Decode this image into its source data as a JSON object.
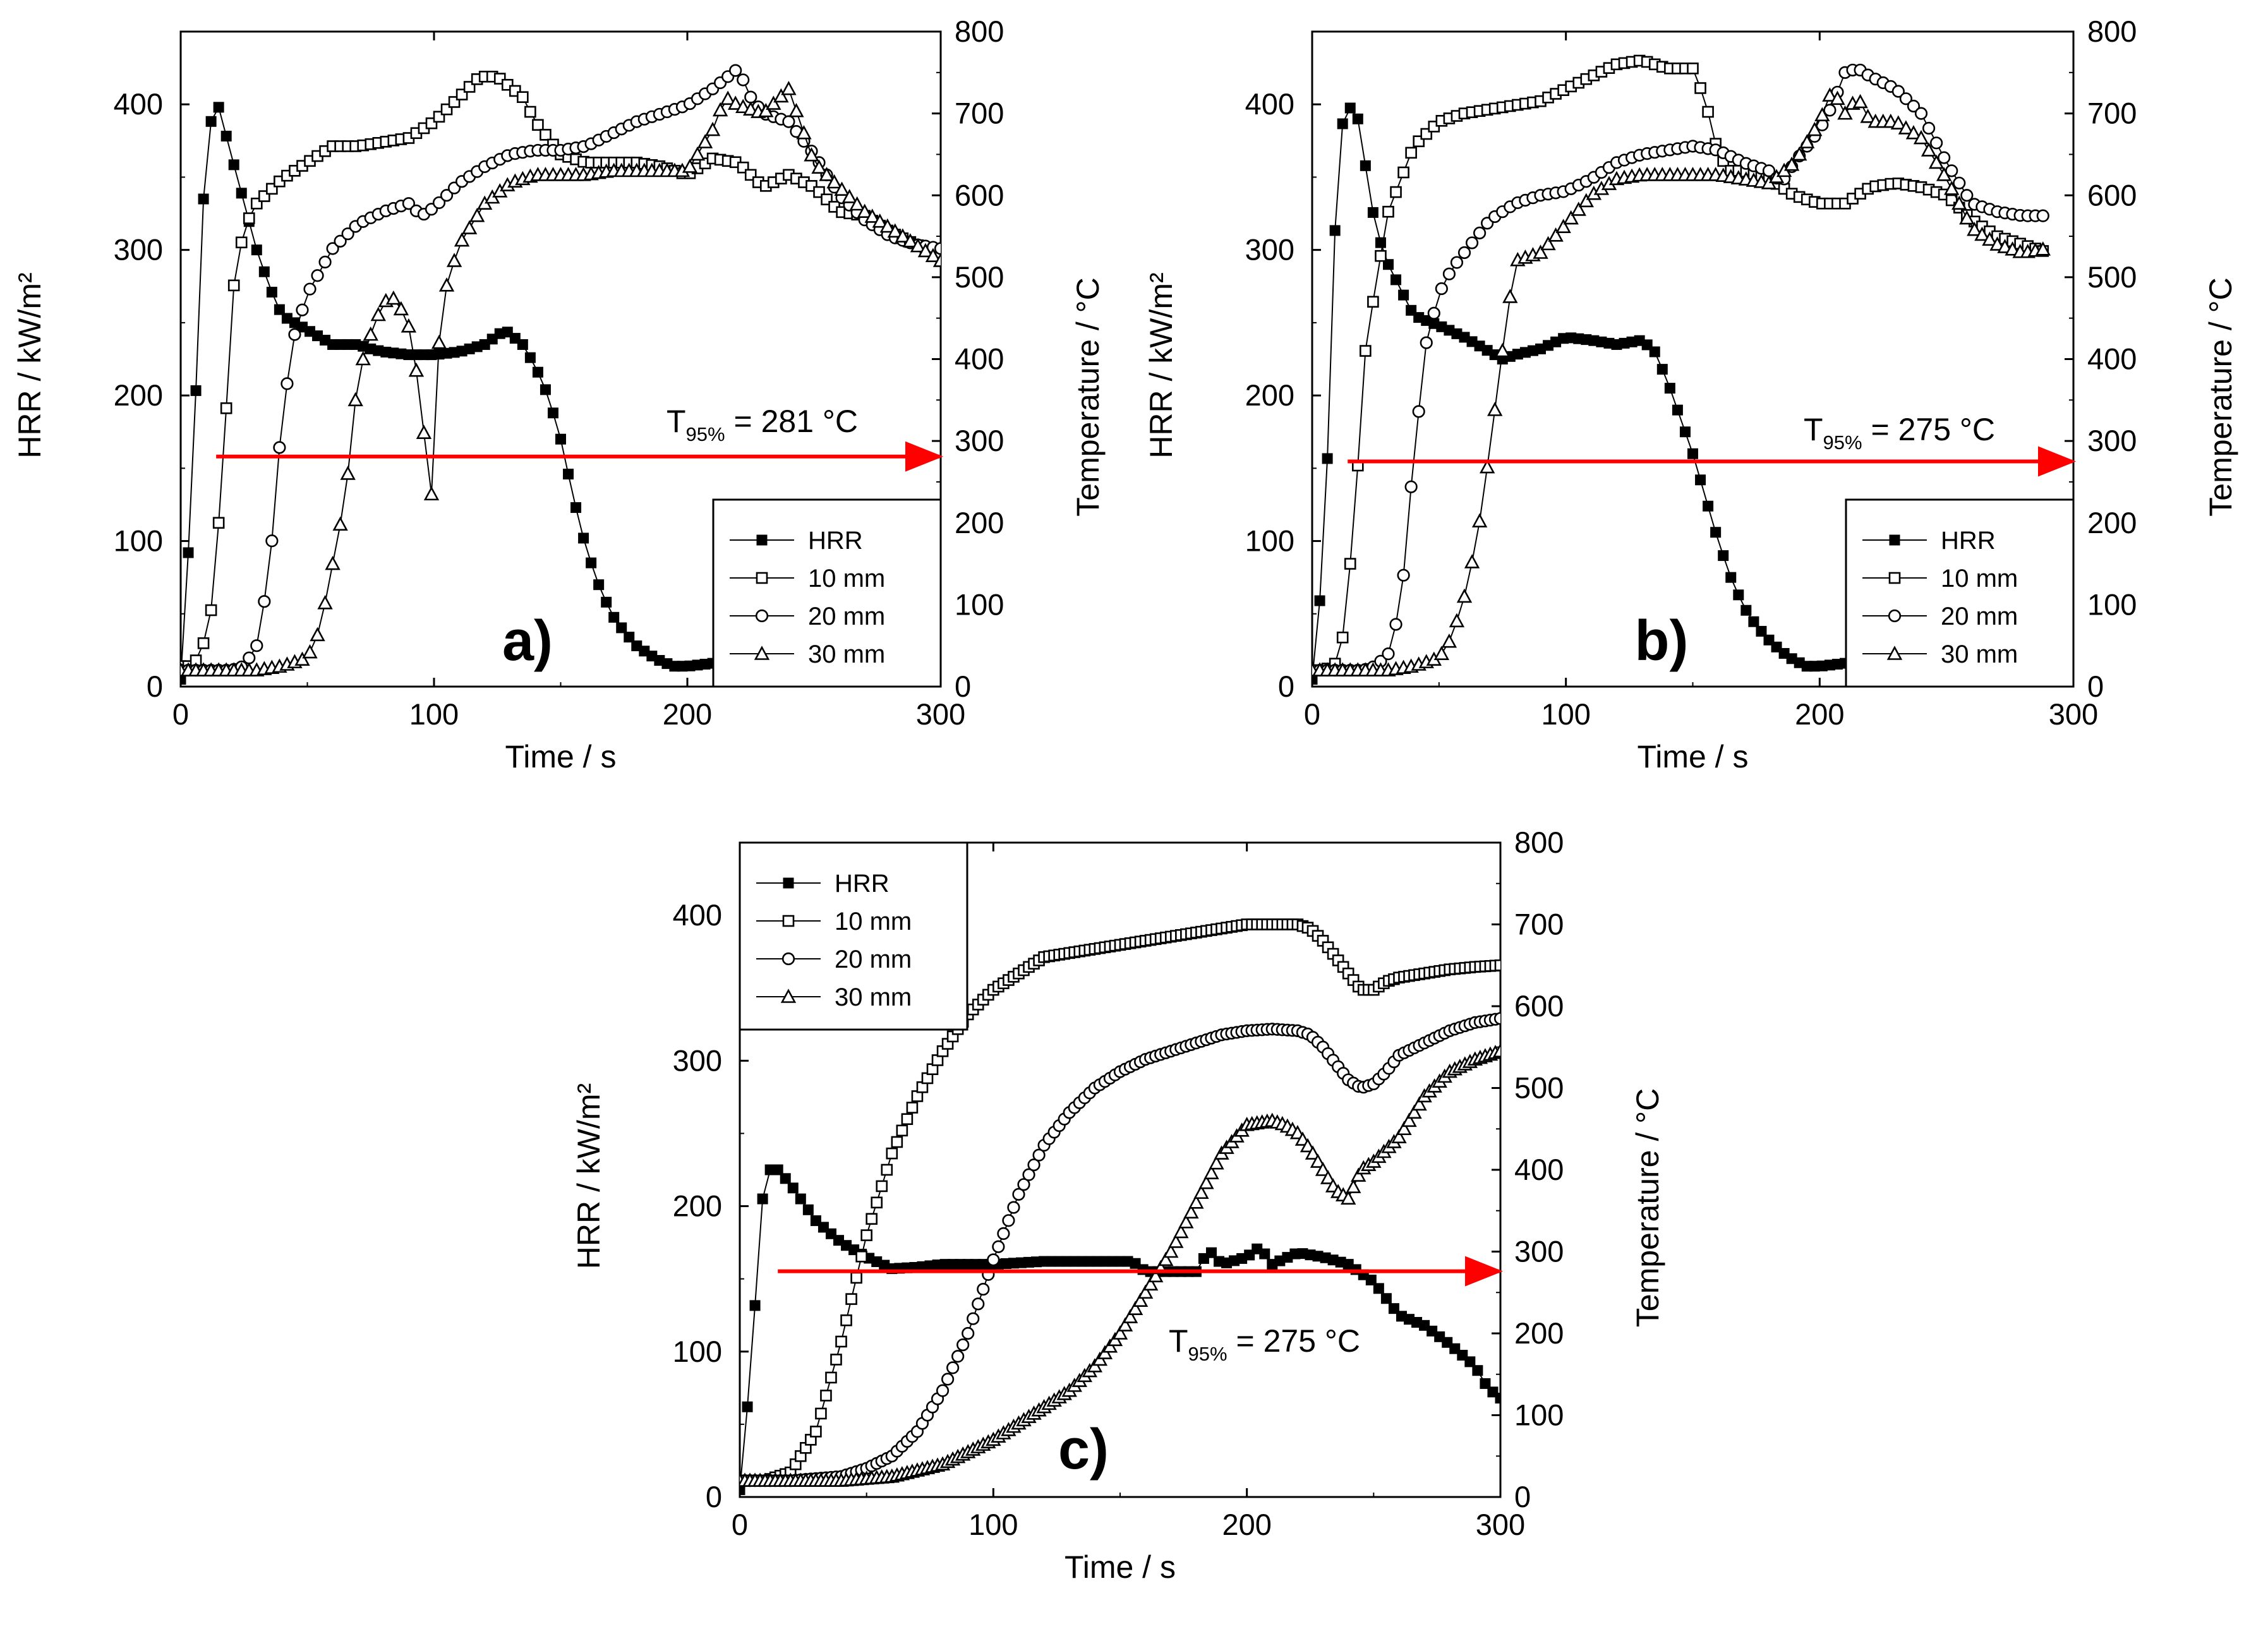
{
  "colors": {
    "arrow": "#ff0000",
    "hrr": "#000000",
    "temp": "#000000",
    "background": "#ffffff"
  },
  "chart_data": [
    {
      "type": "line",
      "panel_label": "a)",
      "xlabel": "Time  / s",
      "ylabel": "HRR  / kW/m²",
      "y2label": "Temperature  / °C",
      "xlim": [
        0,
        300
      ],
      "ylim": [
        0,
        450
      ],
      "y2lim": [
        0,
        800
      ],
      "xticks": [
        "0",
        "100",
        "200",
        "300"
      ],
      "yticks": [
        "0",
        "100",
        "200",
        "300",
        "400"
      ],
      "y2ticks": [
        "0",
        "100",
        "200",
        "300",
        "400",
        "500",
        "600",
        "700",
        "800"
      ],
      "legend_position": "bottom-right",
      "annotation": {
        "main": "T",
        "sub": "95%",
        "rest": " = 281 °C"
      },
      "arrow": {
        "x0": 14,
        "x1": 300,
        "y2": 281
      },
      "series": [
        {
          "name": "HRR",
          "marker": "square-filled",
          "axis": "left",
          "step": 3,
          "x": [
            0,
            5,
            8,
            11,
            15,
            20,
            30,
            35,
            40,
            50,
            60,
            70,
            75,
            80,
            90,
            100,
            110,
            120,
            128,
            135,
            140,
            145,
            150,
            155,
            160,
            165,
            170,
            175,
            180,
            185,
            190,
            195,
            200,
            205,
            210,
            215
          ],
          "y": [
            5,
            150,
            310,
            385,
            398,
            365,
            300,
            275,
            255,
            245,
            235,
            235,
            232,
            230,
            228,
            228,
            230,
            235,
            245,
            235,
            220,
            200,
            170,
            130,
            95,
            70,
            50,
            38,
            28,
            22,
            17,
            14,
            14,
            15,
            16,
            17
          ]
        },
        {
          "name": "10 mm",
          "marker": "square-open",
          "axis": "right",
          "step": 3,
          "x": [
            0,
            5,
            10,
            13,
            17,
            21,
            25,
            30,
            40,
            50,
            60,
            70,
            80,
            90,
            100,
            110,
            118,
            125,
            135,
            140,
            150,
            160,
            170,
            180,
            190,
            200,
            210,
            220,
            230,
            240,
            250,
            260,
            270,
            280,
            290,
            300
          ],
          "y": [
            25,
            25,
            60,
            110,
            290,
            490,
            560,
            590,
            620,
            640,
            660,
            660,
            665,
            670,
            690,
            720,
            745,
            745,
            720,
            690,
            650,
            640,
            640,
            640,
            635,
            625,
            645,
            640,
            610,
            625,
            610,
            580,
            575,
            555,
            540,
            530
          ]
        },
        {
          "name": "20 mm",
          "marker": "circle-open",
          "axis": "right",
          "step": 3,
          "x": [
            0,
            10,
            20,
            25,
            30,
            35,
            40,
            45,
            50,
            60,
            70,
            80,
            90,
            95,
            100,
            110,
            120,
            130,
            140,
            150,
            160,
            170,
            180,
            190,
            200,
            210,
            220,
            225,
            230,
            240,
            250,
            260,
            270,
            280,
            290,
            300
          ],
          "y": [
            20,
            20,
            20,
            25,
            50,
            140,
            330,
            430,
            480,
            535,
            565,
            580,
            590,
            575,
            585,
            615,
            635,
            650,
            655,
            655,
            660,
            675,
            690,
            700,
            710,
            730,
            755,
            720,
            700,
            690,
            650,
            600,
            570,
            550,
            540,
            535
          ]
        },
        {
          "name": "30 mm",
          "marker": "triangle-open",
          "axis": "right",
          "step": 3,
          "x": [
            0,
            20,
            30,
            40,
            50,
            55,
            60,
            65,
            70,
            75,
            80,
            85,
            90,
            95,
            98,
            100,
            102,
            105,
            110,
            120,
            130,
            140,
            150,
            160,
            170,
            180,
            190,
            200,
            210,
            215,
            220,
            230,
            240,
            250,
            260,
            270,
            280,
            290,
            300
          ],
          "y": [
            20,
            20,
            20,
            25,
            35,
            70,
            150,
            230,
            380,
            430,
            470,
            475,
            440,
            350,
            230,
            240,
            420,
            490,
            540,
            590,
            615,
            625,
            625,
            625,
            630,
            630,
            630,
            630,
            680,
            720,
            710,
            700,
            730,
            640,
            610,
            580,
            560,
            540,
            520
          ]
        }
      ]
    },
    {
      "type": "line",
      "panel_label": "b)",
      "xlabel": "Time  / s",
      "ylabel": "HRR  / kW/m²",
      "y2label": "Temperature  / °C",
      "xlim": [
        0,
        300
      ],
      "ylim": [
        0,
        450
      ],
      "y2lim": [
        0,
        800
      ],
      "xticks": [
        "0",
        "100",
        "200",
        "300"
      ],
      "yticks": [
        "0",
        "100",
        "200",
        "300",
        "400"
      ],
      "y2ticks": [
        "0",
        "100",
        "200",
        "300",
        "400",
        "500",
        "600",
        "700",
        "800"
      ],
      "legend_position": "bottom-right",
      "annotation": {
        "main": "T",
        "sub": "95%",
        "rest": " = 275 °C"
      },
      "arrow": {
        "x0": 14,
        "x1": 300,
        "y2": 275
      },
      "series": [
        {
          "name": "HRR",
          "marker": "square-filled",
          "axis": "left",
          "step": 3,
          "x": [
            0,
            5,
            8,
            11,
            14,
            18,
            25,
            30,
            40,
            50,
            60,
            70,
            75,
            80,
            90,
            100,
            110,
            120,
            130,
            135,
            140,
            145,
            150,
            155,
            160,
            165,
            170,
            175,
            180,
            185,
            190,
            195,
            200,
            205,
            210
          ],
          "y": [
            5,
            95,
            280,
            380,
            400,
            390,
            315,
            290,
            255,
            248,
            240,
            230,
            225,
            228,
            232,
            240,
            238,
            235,
            238,
            230,
            210,
            185,
            160,
            130,
            100,
            75,
            55,
            42,
            32,
            24,
            18,
            14,
            14,
            15,
            16
          ]
        },
        {
          "name": "10 mm",
          "marker": "square-open",
          "axis": "right",
          "step": 3,
          "x": [
            0,
            5,
            10,
            12,
            15,
            18,
            21,
            25,
            30,
            40,
            50,
            60,
            70,
            80,
            90,
            100,
            110,
            120,
            130,
            140,
            150,
            155,
            160,
            165,
            170,
            180,
            190,
            200,
            210,
            220,
            230,
            240,
            250,
            260,
            270,
            280,
            290
          ],
          "y": [
            20,
            20,
            30,
            60,
            150,
            270,
            410,
            490,
            580,
            660,
            690,
            700,
            705,
            710,
            715,
            730,
            745,
            760,
            765,
            755,
            755,
            715,
            650,
            630,
            630,
            620,
            600,
            590,
            590,
            610,
            615,
            610,
            600,
            570,
            550,
            540,
            530
          ]
        },
        {
          "name": "20 mm",
          "marker": "circle-open",
          "axis": "right",
          "step": 3,
          "x": [
            0,
            10,
            20,
            25,
            30,
            35,
            40,
            45,
            50,
            55,
            60,
            70,
            80,
            90,
            100,
            110,
            120,
            130,
            140,
            150,
            160,
            170,
            180,
            185,
            190,
            200,
            205,
            210,
            215,
            220,
            230,
            240,
            250,
            260,
            270,
            280,
            290
          ],
          "y": [
            20,
            20,
            20,
            25,
            40,
            100,
            280,
            420,
            480,
            510,
            530,
            570,
            590,
            600,
            605,
            620,
            640,
            650,
            655,
            660,
            655,
            640,
            630,
            615,
            640,
            680,
            710,
            750,
            755,
            745,
            730,
            700,
            640,
            590,
            580,
            575,
            575
          ]
        },
        {
          "name": "30 mm",
          "marker": "triangle-open",
          "axis": "right",
          "step": 3,
          "x": [
            0,
            20,
            30,
            40,
            50,
            55,
            60,
            65,
            70,
            75,
            80,
            85,
            90,
            100,
            110,
            120,
            130,
            140,
            150,
            160,
            170,
            180,
            190,
            200,
            205,
            210,
            215,
            220,
            230,
            240,
            250,
            260,
            270,
            280,
            290
          ],
          "y": [
            20,
            20,
            20,
            25,
            35,
            60,
            110,
            180,
            290,
            410,
            520,
            525,
            530,
            565,
            600,
            620,
            625,
            625,
            625,
            625,
            620,
            615,
            640,
            690,
            730,
            700,
            720,
            690,
            690,
            670,
            620,
            560,
            540,
            530,
            535
          ]
        }
      ]
    },
    {
      "type": "line",
      "panel_label": "c)",
      "xlabel": "Time  / s",
      "ylabel": "HRR  / kW/m²",
      "y2label": "Temperature  / °C",
      "xlim": [
        0,
        300
      ],
      "ylim": [
        0,
        450
      ],
      "y2lim": [
        0,
        800
      ],
      "xticks": [
        "0",
        "100",
        "200",
        "300"
      ],
      "yticks": [
        "0",
        "100",
        "200",
        "300",
        "400"
      ],
      "y2ticks": [
        "0",
        "100",
        "200",
        "300",
        "400",
        "500",
        "600",
        "700",
        "800"
      ],
      "legend_position": "top-left",
      "annotation": {
        "main": "T",
        "sub": "95%",
        "rest": " = 275 °C"
      },
      "arrow": {
        "x0": 15,
        "x1": 300,
        "y2": 276
      },
      "series": [
        {
          "name": "HRR",
          "marker": "square-filled",
          "axis": "left",
          "step": 3,
          "x": [
            0,
            5,
            8,
            11,
            15,
            20,
            30,
            40,
            50,
            60,
            70,
            80,
            100,
            120,
            140,
            155,
            160,
            170,
            180,
            185,
            190,
            200,
            205,
            210,
            220,
            230,
            240,
            250,
            260,
            270,
            280,
            290,
            295,
            300
          ],
          "y": [
            5,
            100,
            195,
            225,
            225,
            215,
            190,
            175,
            165,
            157,
            158,
            160,
            160,
            162,
            162,
            162,
            155,
            155,
            155,
            170,
            160,
            165,
            172,
            160,
            168,
            165,
            160,
            148,
            125,
            118,
            105,
            90,
            75,
            68
          ]
        },
        {
          "name": "10 mm",
          "marker": "square-open",
          "axis": "right",
          "step": 2,
          "x": [
            0,
            10,
            20,
            30,
            40,
            50,
            60,
            70,
            80,
            90,
            100,
            110,
            120,
            140,
            160,
            180,
            200,
            220,
            225,
            230,
            235,
            240,
            245,
            250,
            255,
            260,
            270,
            280,
            290,
            300
          ],
          "y": [
            20,
            20,
            30,
            80,
            190,
            320,
            420,
            490,
            545,
            590,
            620,
            640,
            660,
            670,
            680,
            690,
            700,
            700,
            695,
            680,
            660,
            640,
            620,
            620,
            630,
            635,
            640,
            645,
            648,
            650
          ]
        },
        {
          "name": "20 mm",
          "marker": "circle-open",
          "axis": "right",
          "step": 2,
          "x": [
            0,
            20,
            40,
            50,
            60,
            70,
            80,
            90,
            100,
            110,
            120,
            130,
            140,
            150,
            160,
            170,
            180,
            190,
            200,
            210,
            220,
            225,
            230,
            235,
            240,
            245,
            250,
            255,
            260,
            270,
            280,
            290,
            300
          ],
          "y": [
            20,
            20,
            25,
            35,
            50,
            80,
            130,
            200,
            290,
            370,
            430,
            470,
            500,
            520,
            535,
            545,
            555,
            565,
            570,
            572,
            570,
            565,
            550,
            530,
            510,
            500,
            505,
            520,
            540,
            555,
            570,
            580,
            585
          ]
        },
        {
          "name": "30 mm",
          "marker": "triangle-open",
          "axis": "right",
          "step": 2,
          "x": [
            0,
            40,
            60,
            80,
            100,
            110,
            120,
            130,
            140,
            150,
            160,
            170,
            180,
            190,
            200,
            210,
            215,
            220,
            225,
            230,
            235,
            240,
            245,
            250,
            260,
            270,
            280,
            290,
            300
          ],
          "y": [
            20,
            20,
            25,
            40,
            70,
            90,
            110,
            130,
            160,
            200,
            250,
            300,
            360,
            420,
            455,
            460,
            455,
            445,
            425,
            400,
            375,
            365,
            400,
            410,
            440,
            490,
            520,
            535,
            545
          ]
        }
      ]
    }
  ]
}
